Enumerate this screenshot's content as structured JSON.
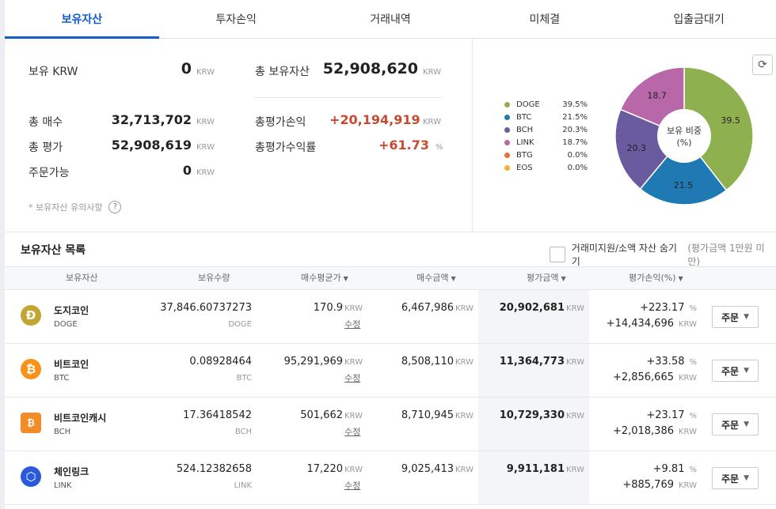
{
  "tabs": [
    "보유자산",
    "투자손익",
    "거래내역",
    "미체결",
    "입출금대기"
  ],
  "summary": {
    "krw_label": "보유 KRW",
    "krw_value": "0",
    "unit": "KRW",
    "total_assets_label": "총 보유자산",
    "total_assets_value": "52,908,620",
    "total_buy_label": "총 매수",
    "total_buy_value": "32,713,702",
    "total_pl_label": "총평가손익",
    "total_pl_value": "+20,194,919",
    "total_eval_label": "총 평가",
    "total_eval_value": "52,908,619",
    "total_rate_label": "총평가수익률",
    "total_rate_value": "+61.73",
    "pct_unit": "%",
    "orderable_label": "주문가능",
    "orderable_value": "0",
    "note": "* 보유자산 유의사항",
    "help_icon": "?"
  },
  "pie": {
    "center_line1": "보유 비중",
    "center_line2": "(%)",
    "refresh_icon": "⟳",
    "legend": [
      {
        "name": "DOGE",
        "pct": "39.5%",
        "color": "#8fb04e"
      },
      {
        "name": "BTC",
        "pct": "21.5%",
        "color": "#1f7ab4"
      },
      {
        "name": "BCH",
        "pct": "20.3%",
        "color": "#6a5a9e"
      },
      {
        "name": "LINK",
        "pct": "18.7%",
        "color": "#b868a8"
      },
      {
        "name": "BTG",
        "pct": "0.0%",
        "color": "#e8703a"
      },
      {
        "name": "EOS",
        "pct": "0.0%",
        "color": "#f2b23a"
      }
    ],
    "slices": [
      {
        "label": "39.5",
        "value": 39.5,
        "color": "#8fb04e"
      },
      {
        "label": "21.5",
        "value": 21.5,
        "color": "#1f7ab4"
      },
      {
        "label": "20.3",
        "value": 20.3,
        "color": "#6a5a9e"
      },
      {
        "label": "18.7",
        "value": 18.7,
        "color": "#b868a8"
      }
    ]
  },
  "list": {
    "title": "보유자산 목록",
    "hide_label": "거래미지원/소액 자산 숨기기",
    "hide_sub": "(평가금액 1만원 미만)",
    "headers": [
      "보유자산",
      "보유수량",
      "매수평균가",
      "매수금액",
      "평가금액",
      "평가손익(%)"
    ],
    "caret": "▼",
    "edit_label": "수정",
    "order_label": "주문",
    "order_caret": "▼",
    "unit": "KRW",
    "pct_unit": "%",
    "rows": [
      {
        "name": "도지코인",
        "symbol": "DOGE",
        "icon": "Ð",
        "icon_color": "#c2a633",
        "qty": "37,846.60737273",
        "qty_unit": "DOGE",
        "avg": "170.9",
        "buy": "6,467,986",
        "eval": "20,902,681",
        "pl_pct": "+223.17",
        "pl_amt": "+14,434,696"
      },
      {
        "name": "비트코인",
        "symbol": "BTC",
        "icon": "₿",
        "icon_color": "#f7931a",
        "qty": "0.08928464",
        "qty_unit": "BTC",
        "avg": "95,291,969",
        "buy": "8,508,110",
        "eval": "11,364,773",
        "pl_pct": "+33.58",
        "pl_amt": "+2,856,665"
      },
      {
        "name": "비트코인캐시",
        "symbol": "BCH",
        "icon": "₿",
        "icon_color": "#f28c28",
        "qty": "17.36418542",
        "qty_unit": "BCH",
        "avg": "501,662",
        "buy": "8,710,945",
        "eval": "10,729,330",
        "pl_pct": "+23.17",
        "pl_amt": "+2,018,386"
      },
      {
        "name": "체인링크",
        "symbol": "LINK",
        "icon": "⬡",
        "icon_color": "#2a5ada",
        "qty": "524.12382658",
        "qty_unit": "LINK",
        "avg": "17,220",
        "buy": "9,025,413",
        "eval": "9,911,181",
        "pl_pct": "+9.81",
        "pl_amt": "+885,769"
      }
    ]
  }
}
